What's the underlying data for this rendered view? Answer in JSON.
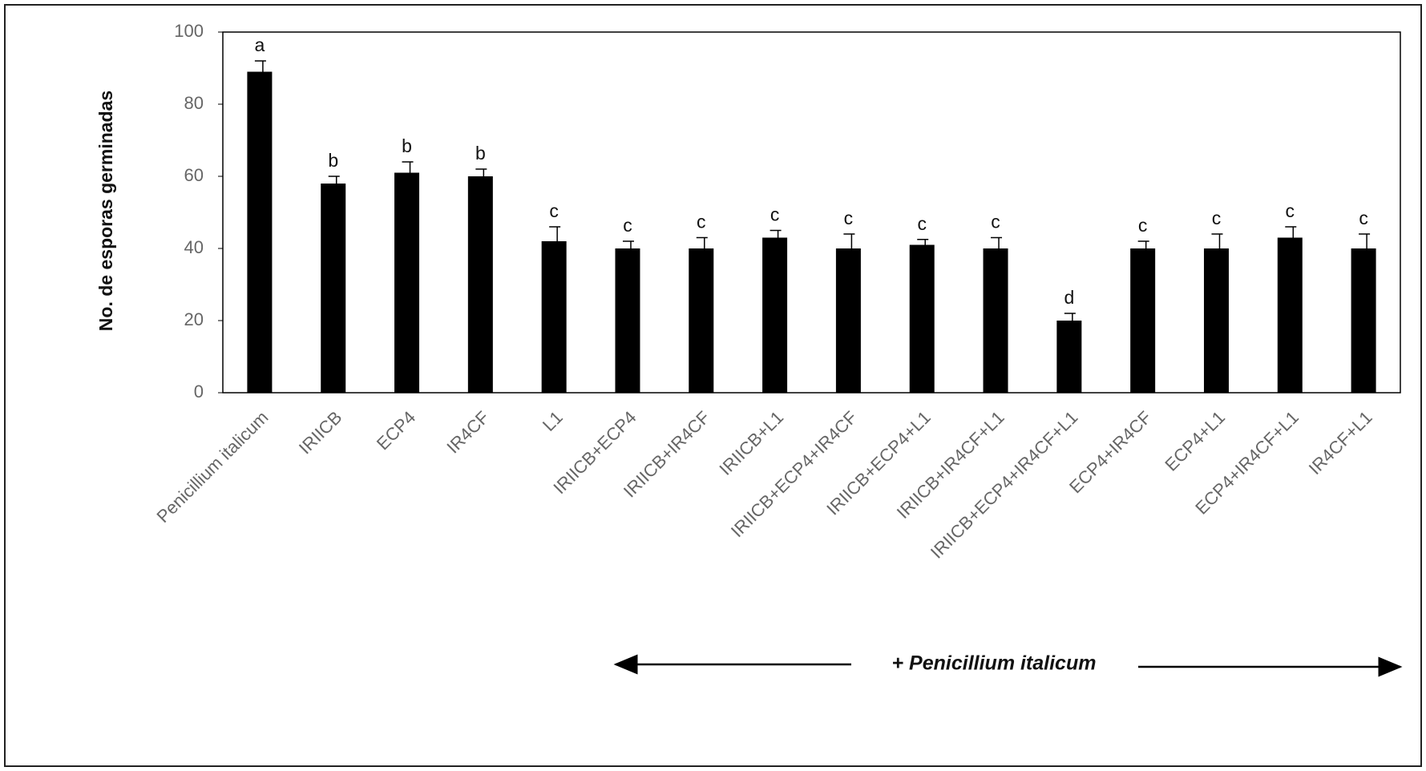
{
  "chart_data": {
    "type": "bar",
    "y_label": "No. de esporas germinadas",
    "categories": [
      "Penicillium italicum",
      "IRIICB",
      "ECP4",
      "IR4CF",
      "L1",
      "IRIICB+ECP4",
      "IRIICB+IR4CF",
      "IRIICB+L1",
      "IRIICB+ECP4+IR4CF",
      "IRIICB+ECP4+L1",
      "IRIICB+IR4CF+L1",
      "IRIICB+ECP4+IR4CF+L1",
      "ECP4+IR4CF",
      "ECP4+L1",
      "ECP4+IR4CF+L1",
      "IR4CF+L1"
    ],
    "values": [
      89,
      58,
      61,
      60,
      42,
      40,
      40,
      43,
      40,
      41,
      40,
      20,
      40,
      40,
      43,
      40
    ],
    "errors": [
      3,
      2,
      3,
      2,
      4,
      2,
      3,
      2,
      4,
      1.5,
      3,
      2,
      2,
      4,
      3,
      4
    ],
    "letters": [
      "a",
      "b",
      "b",
      "b",
      "c",
      "c",
      "c",
      "c",
      "c",
      "c",
      "c",
      "d",
      "c",
      "c",
      "c",
      "c"
    ],
    "color": "#000000",
    "ylim": [
      0,
      100
    ],
    "yticks": [
      0,
      20,
      40,
      60,
      80,
      100
    ],
    "annotation": "+ Penicillium italicum"
  }
}
